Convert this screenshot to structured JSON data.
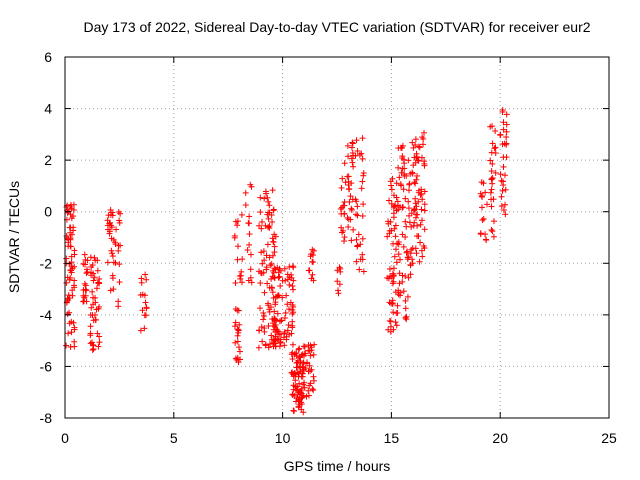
{
  "chart_data": {
    "type": "scatter",
    "title": "Day 173 of 2022, Sidereal Day-to-day VTEC variation (SDTVAR) for receiver eur2",
    "xlabel": "GPS time / hours",
    "ylabel": "SDTVAR / TECUs",
    "xlim": [
      0,
      25
    ],
    "ylim": [
      -8,
      6
    ],
    "xticks": [
      0,
      5,
      10,
      15,
      20,
      25
    ],
    "yticks": [
      -8,
      -6,
      -4,
      -2,
      0,
      2,
      4,
      6
    ],
    "xtick_labels": [
      "0",
      "5",
      "10",
      "15",
      "20",
      "25"
    ],
    "ytick_labels": [
      "-8",
      "-6",
      "-4",
      "-2",
      "0",
      "2",
      "4",
      "6"
    ],
    "grid": true,
    "marker": "+",
    "color": "#ff0000",
    "clusters": [
      {
        "x": [
          0.05,
          0.45
        ],
        "y": [
          -5.3,
          0.3
        ],
        "n": 70
      },
      {
        "x": [
          0.75,
          1.05
        ],
        "y": [
          -3.5,
          -1.6
        ],
        "n": 20
      },
      {
        "x": [
          1.15,
          1.6
        ],
        "y": [
          -5.4,
          -1.7
        ],
        "n": 45
      },
      {
        "x": [
          1.95,
          2.25
        ],
        "y": [
          -3.2,
          0.4
        ],
        "n": 25
      },
      {
        "x": [
          2.3,
          2.55
        ],
        "y": [
          -3.9,
          0.6
        ],
        "n": 15
      },
      {
        "x": [
          3.45,
          3.75
        ],
        "y": [
          -4.7,
          -2.4
        ],
        "n": 15
      },
      {
        "x": [
          7.75,
          8.05
        ],
        "y": [
          -5.9,
          -3.7
        ],
        "n": 20
      },
      {
        "x": [
          7.8,
          8.15
        ],
        "y": [
          -2.8,
          -0.1
        ],
        "n": 15
      },
      {
        "x": [
          8.3,
          8.6
        ],
        "y": [
          -2.9,
          1.2
        ],
        "n": 15
      },
      {
        "x": [
          8.9,
          9.7
        ],
        "y": [
          -5.3,
          0.9
        ],
        "n": 90
      },
      {
        "x": [
          9.4,
          10.5
        ],
        "y": [
          -5.3,
          -2.1
        ],
        "n": 90
      },
      {
        "x": [
          10.4,
          10.95
        ],
        "y": [
          -7.8,
          -5.3
        ],
        "n": 80
      },
      {
        "x": [
          10.95,
          11.45
        ],
        "y": [
          -7.2,
          -5.0
        ],
        "n": 35
      },
      {
        "x": [
          11.2,
          11.45
        ],
        "y": [
          -2.7,
          -1.3
        ],
        "n": 12
      },
      {
        "x": [
          12.5,
          12.8
        ],
        "y": [
          -3.4,
          -2.1
        ],
        "n": 8
      },
      {
        "x": [
          12.65,
          13.25
        ],
        "y": [
          -1.2,
          2.7
        ],
        "n": 45
      },
      {
        "x": [
          13.35,
          13.75
        ],
        "y": [
          -2.5,
          2.9
        ],
        "n": 30
      },
      {
        "x": [
          14.8,
          15.3
        ],
        "y": [
          -4.7,
          1.3
        ],
        "n": 60
      },
      {
        "x": [
          15.3,
          15.9
        ],
        "y": [
          -4.4,
          2.9
        ],
        "n": 70
      },
      {
        "x": [
          15.9,
          16.55
        ],
        "y": [
          -2.1,
          3.1
        ],
        "n": 70
      },
      {
        "x": [
          19.1,
          19.4
        ],
        "y": [
          -1.1,
          1.2
        ],
        "n": 15
      },
      {
        "x": [
          19.5,
          19.8
        ],
        "y": [
          -1.0,
          3.7
        ],
        "n": 25
      },
      {
        "x": [
          20.0,
          20.3
        ],
        "y": [
          -0.4,
          4.3
        ],
        "n": 30
      }
    ]
  }
}
